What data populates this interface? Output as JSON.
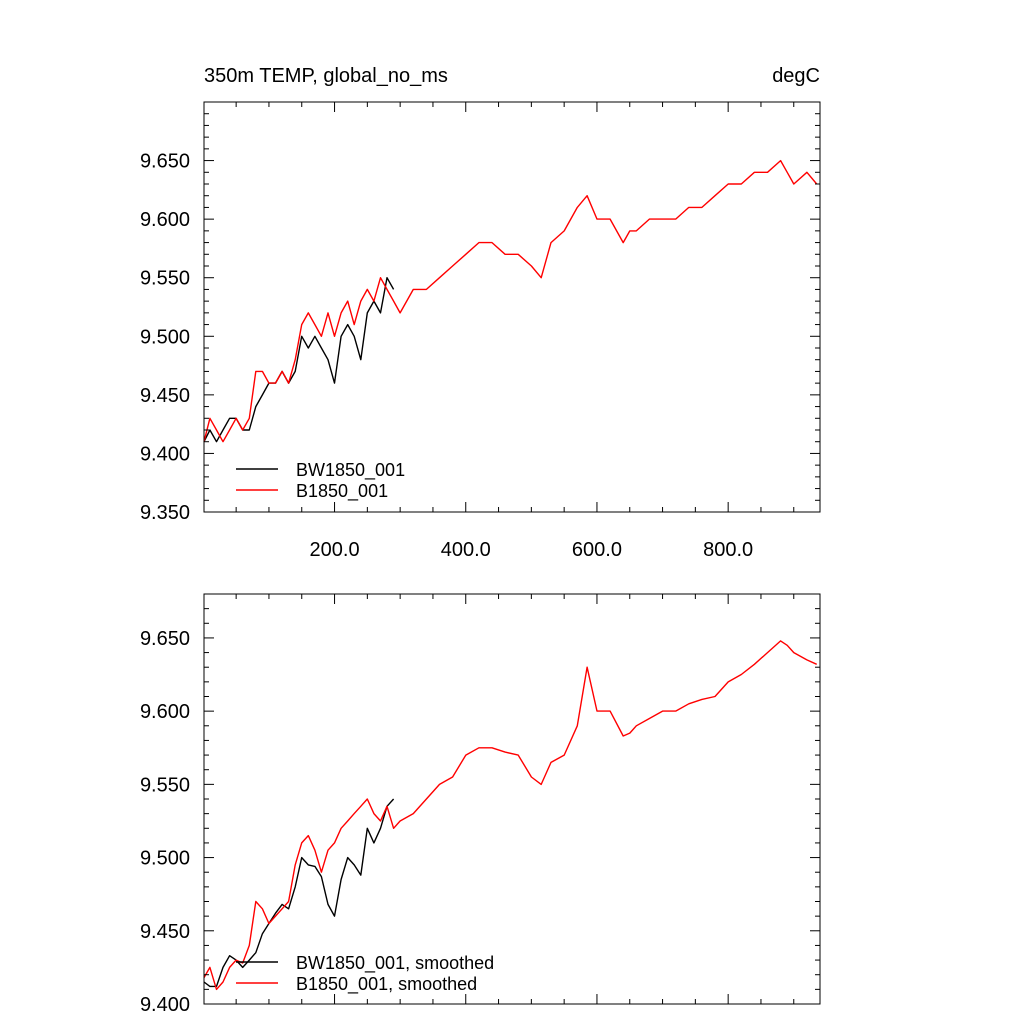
{
  "header": {
    "title": "350m TEMP, global_no_ms",
    "units": "degC"
  },
  "chart_data": [
    {
      "type": "line",
      "title": "350m TEMP, global_no_ms",
      "units": "degC",
      "xlim": [
        1,
        940
      ],
      "ylim": [
        9.35,
        9.7
      ],
      "x_ticks": [
        200,
        400,
        600,
        800
      ],
      "x_tick_labels": [
        "200.0",
        "400.0",
        "600.0",
        "800.0"
      ],
      "y_ticks": [
        9.35,
        9.4,
        9.45,
        9.5,
        9.55,
        9.6,
        9.65
      ],
      "y_tick_labels": [
        "9.350",
        "9.400",
        "9.450",
        "9.500",
        "9.550",
        "9.600",
        "9.650"
      ],
      "legend_position": "bottom-left",
      "series": [
        {
          "name": "BW1850_001",
          "color": "#000000",
          "x": [
            1,
            10,
            20,
            30,
            40,
            50,
            60,
            70,
            80,
            90,
            100,
            110,
            120,
            130,
            140,
            150,
            160,
            170,
            180,
            190,
            200,
            210,
            220,
            230,
            240,
            250,
            260,
            270,
            280,
            290
          ],
          "y": [
            9.41,
            9.42,
            9.41,
            9.42,
            9.43,
            9.43,
            9.42,
            9.42,
            9.44,
            9.45,
            9.46,
            9.46,
            9.47,
            9.46,
            9.47,
            9.5,
            9.49,
            9.5,
            9.49,
            9.48,
            9.46,
            9.5,
            9.51,
            9.5,
            9.48,
            9.52,
            9.53,
            9.52,
            9.55,
            9.54
          ]
        },
        {
          "name": "B1850_001",
          "color": "#ff0000",
          "x": [
            1,
            10,
            20,
            30,
            40,
            50,
            60,
            70,
            80,
            90,
            100,
            110,
            120,
            130,
            140,
            150,
            160,
            170,
            180,
            190,
            200,
            210,
            220,
            230,
            240,
            250,
            260,
            270,
            280,
            290,
            300,
            320,
            340,
            360,
            380,
            400,
            420,
            440,
            460,
            480,
            500,
            515,
            530,
            550,
            570,
            585,
            600,
            620,
            640,
            650,
            660,
            680,
            700,
            720,
            740,
            760,
            780,
            800,
            820,
            840,
            860,
            880,
            890,
            900,
            920,
            935
          ],
          "y": [
            9.41,
            9.43,
            9.42,
            9.41,
            9.42,
            9.43,
            9.42,
            9.43,
            9.47,
            9.47,
            9.46,
            9.46,
            9.47,
            9.46,
            9.48,
            9.51,
            9.52,
            9.51,
            9.5,
            9.52,
            9.5,
            9.52,
            9.53,
            9.51,
            9.53,
            9.54,
            9.53,
            9.55,
            9.54,
            9.53,
            9.52,
            9.54,
            9.54,
            9.55,
            9.56,
            9.57,
            9.58,
            9.58,
            9.57,
            9.57,
            9.56,
            9.55,
            9.58,
            9.59,
            9.61,
            9.62,
            9.6,
            9.6,
            9.58,
            9.59,
            9.59,
            9.6,
            9.6,
            9.6,
            9.61,
            9.61,
            9.62,
            9.63,
            9.63,
            9.64,
            9.64,
            9.65,
            9.64,
            9.63,
            9.64,
            9.63
          ]
        }
      ]
    },
    {
      "type": "line",
      "xlim": [
        1,
        940
      ],
      "ylim": [
        9.4,
        9.68
      ],
      "x_ticks": [
        200,
        400,
        600,
        800
      ],
      "y_ticks": [
        9.4,
        9.45,
        9.5,
        9.55,
        9.6,
        9.65
      ],
      "y_tick_labels": [
        "9.400",
        "9.450",
        "9.500",
        "9.550",
        "9.600",
        "9.650"
      ],
      "legend_position": "bottom-left",
      "series": [
        {
          "name": "BW1850_001, smoothed",
          "color": "#000000",
          "x": [
            1,
            10,
            20,
            30,
            40,
            50,
            60,
            70,
            80,
            90,
            100,
            110,
            120,
            130,
            140,
            150,
            160,
            170,
            180,
            190,
            200,
            210,
            220,
            230,
            240,
            250,
            260,
            270,
            280,
            290
          ],
          "y": [
            9.415,
            9.412,
            9.412,
            9.425,
            9.433,
            9.43,
            9.425,
            9.43,
            9.435,
            9.448,
            9.455,
            9.462,
            9.468,
            9.465,
            9.48,
            9.5,
            9.495,
            9.494,
            9.487,
            9.468,
            9.46,
            9.485,
            9.5,
            9.495,
            9.488,
            9.52,
            9.51,
            9.52,
            9.535,
            9.54
          ]
        },
        {
          "name": "B1850_001, smoothed",
          "color": "#ff0000",
          "x": [
            1,
            10,
            20,
            30,
            40,
            50,
            60,
            70,
            80,
            90,
            100,
            110,
            120,
            130,
            140,
            150,
            160,
            170,
            180,
            190,
            200,
            210,
            220,
            230,
            240,
            250,
            260,
            270,
            280,
            290,
            300,
            320,
            340,
            360,
            380,
            400,
            420,
            440,
            460,
            480,
            500,
            515,
            530,
            550,
            570,
            585,
            600,
            620,
            640,
            650,
            660,
            680,
            700,
            720,
            740,
            760,
            780,
            800,
            820,
            840,
            860,
            880,
            890,
            900,
            920,
            935
          ],
          "y": [
            9.418,
            9.425,
            9.41,
            9.415,
            9.425,
            9.43,
            9.428,
            9.44,
            9.47,
            9.465,
            9.455,
            9.46,
            9.465,
            9.47,
            9.495,
            9.51,
            9.515,
            9.505,
            9.49,
            9.505,
            9.51,
            9.52,
            9.525,
            9.53,
            9.535,
            9.54,
            9.53,
            9.525,
            9.535,
            9.52,
            9.525,
            9.53,
            9.54,
            9.55,
            9.555,
            9.57,
            9.575,
            9.575,
            9.572,
            9.57,
            9.555,
            9.55,
            9.565,
            9.57,
            9.59,
            9.63,
            9.6,
            9.6,
            9.583,
            9.585,
            9.59,
            9.595,
            9.6,
            9.6,
            9.605,
            9.608,
            9.61,
            9.62,
            9.625,
            9.632,
            9.64,
            9.648,
            9.645,
            9.64,
            9.635,
            9.632
          ]
        }
      ]
    }
  ]
}
